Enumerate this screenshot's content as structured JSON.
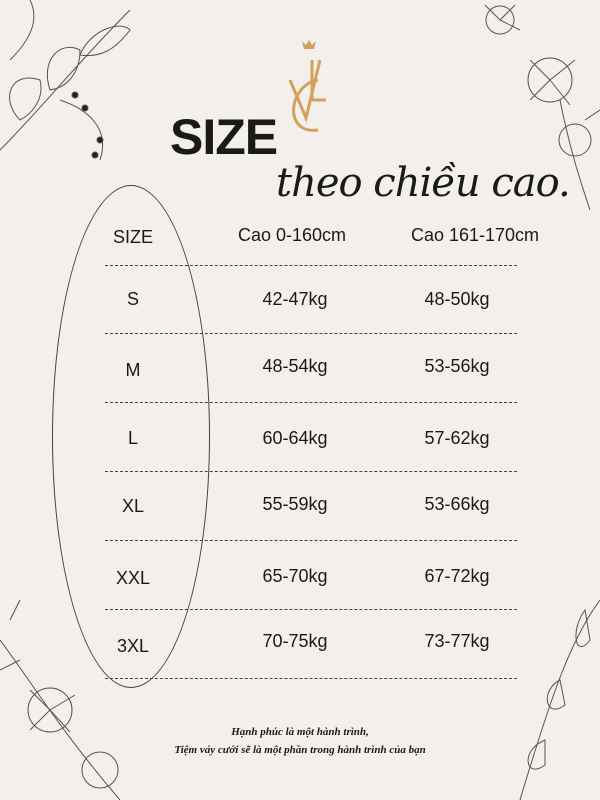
{
  "logo": {
    "text": "VC",
    "color": "#d4a060"
  },
  "heading": {
    "title": "SIZE",
    "subtitle": "theo chiều cao."
  },
  "table": {
    "headers": [
      "SIZE",
      "Cao 0-160cm",
      "Cao 161-170cm"
    ],
    "rows": [
      [
        "S",
        "42-47kg",
        "48-50kg"
      ],
      [
        "M",
        "48-54kg",
        "53-56kg"
      ],
      [
        "L",
        "60-64kg",
        "57-62kg"
      ],
      [
        "XL",
        "55-59kg",
        "53-66kg"
      ],
      [
        "XXL",
        "65-70kg",
        "67-72kg"
      ],
      [
        "3XL",
        "70-75kg",
        "73-77kg"
      ]
    ]
  },
  "footer": {
    "line1": "Hạnh phúc là một hành trình,",
    "line2": "Tiệm váy cưới sẽ là một phần trong hành trình của bạn"
  }
}
